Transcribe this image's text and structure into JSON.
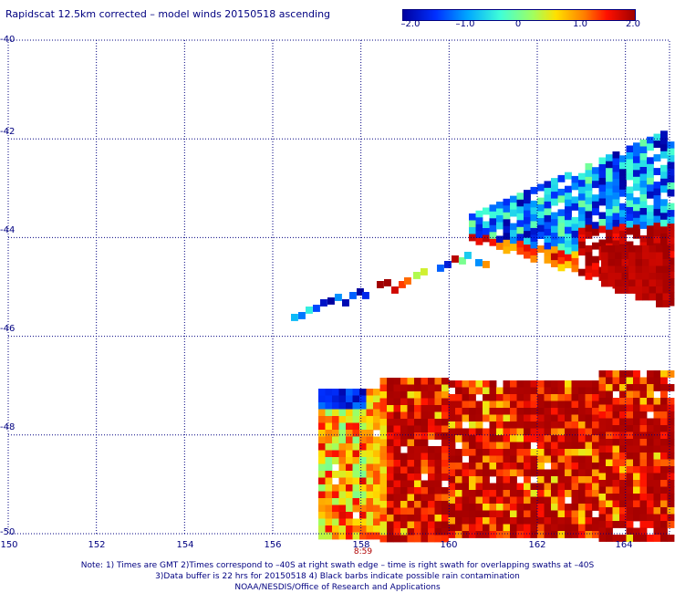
{
  "title": "Rapidscat 12.5km corrected – model winds 20150518 ascending",
  "colorbar": {
    "ticks": [
      "–2.0",
      "–1.0",
      "0",
      "1.0",
      "2.0"
    ],
    "range": [
      -2.0,
      2.0
    ]
  },
  "map": {
    "lat_labels": [
      "-40",
      "-42",
      "-44",
      "-46",
      "-48",
      "-50"
    ],
    "lon_labels": [
      "150",
      "152",
      "154",
      "156",
      "158",
      "160",
      "162",
      "164"
    ],
    "lat_range": [
      -50,
      -40
    ],
    "lon_range": [
      150,
      165
    ],
    "grid": "dotted"
  },
  "time_label": "8:59",
  "notes": {
    "line1": "Note: 1) Times are GMT 2)Times correspond to –40S at right swath edge – time is right swath for overlapping swaths at –40S",
    "line2": "3)Data buffer is 22 hrs for 20150518 4) Black barbs indicate possible rain contamination",
    "line3": "NOAA/NESDIS/Office of Research and Applications"
  },
  "colors": {
    "text": "#000080",
    "grid": "#000080",
    "time_label": "#b00000"
  }
}
